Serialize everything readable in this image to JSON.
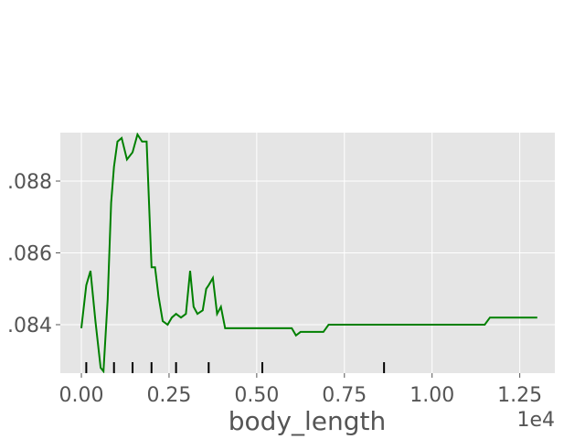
{
  "chart_data": {
    "type": "line",
    "title": "",
    "xlabel": "body_length",
    "ylabel": "",
    "x_offset_label": "1e4",
    "xlim": [
      -0.06,
      1.35
    ],
    "ylim": [
      0.08265,
      0.08935
    ],
    "grid": true,
    "background": "#e5e5e5",
    "line_color": "#008000",
    "rug_color": "#000000",
    "x_ticks": [
      {
        "value": 0.0,
        "label": "0.00"
      },
      {
        "value": 0.25,
        "label": "0.25"
      },
      {
        "value": 0.5,
        "label": "0.50"
      },
      {
        "value": 0.75,
        "label": "0.75"
      },
      {
        "value": 1.0,
        "label": "1.00"
      },
      {
        "value": 1.25,
        "label": "1.25"
      }
    ],
    "y_ticks": [
      {
        "value": 0.084,
        "label": ".084"
      },
      {
        "value": 0.086,
        "label": ".086"
      },
      {
        "value": 0.088,
        "label": ".088"
      }
    ],
    "rug": [
      0.014,
      0.093,
      0.146,
      0.2,
      0.27,
      0.363,
      0.516,
      0.863
    ],
    "series": [
      {
        "x": [
          0.0,
          0.014,
          0.026,
          0.04,
          0.055,
          0.063,
          0.075,
          0.085,
          0.093,
          0.103,
          0.115,
          0.13,
          0.146,
          0.16,
          0.173,
          0.186,
          0.2,
          0.21,
          0.22,
          0.232,
          0.246,
          0.258,
          0.27,
          0.284,
          0.298,
          0.31,
          0.32,
          0.331,
          0.346,
          0.356,
          0.363,
          0.375,
          0.387,
          0.398,
          0.41,
          0.422,
          0.44,
          0.5,
          0.6,
          0.612,
          0.625,
          0.64,
          0.69,
          0.705,
          0.85,
          1.0,
          1.15,
          1.165,
          1.3
        ],
        "y": [
          0.0839,
          0.0851,
          0.0855,
          0.0841,
          0.0828,
          0.0827,
          0.0847,
          0.0874,
          0.0884,
          0.0891,
          0.0892,
          0.0886,
          0.0888,
          0.0893,
          0.0891,
          0.0891,
          0.0856,
          0.0856,
          0.0848,
          0.0841,
          0.084,
          0.0842,
          0.0843,
          0.0842,
          0.0843,
          0.0855,
          0.0845,
          0.0843,
          0.0844,
          0.085,
          0.0851,
          0.0853,
          0.0843,
          0.0845,
          0.0839,
          0.0839,
          0.0839,
          0.0839,
          0.0839,
          0.0837,
          0.0838,
          0.0838,
          0.0838,
          0.084,
          0.084,
          0.084,
          0.084,
          0.0842,
          0.0842
        ]
      }
    ]
  }
}
